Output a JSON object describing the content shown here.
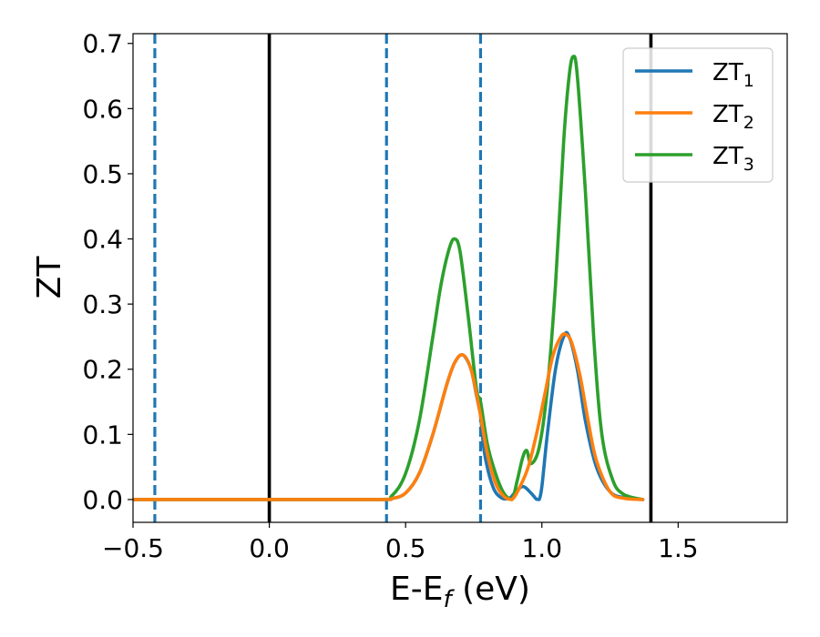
{
  "chart_data": {
    "type": "line",
    "title": "",
    "xlabel": "E-E",
    "xlabel_sub": "f",
    "xlabel_unit": " (eV)",
    "ylabel": "ZT",
    "xlim": [
      -0.5,
      1.9
    ],
    "ylim": [
      -0.035,
      0.715
    ],
    "xticks": [
      -0.5,
      0.0,
      0.5,
      1.0,
      1.5
    ],
    "xtick_labels": [
      "−0.5",
      "0.0",
      "0.5",
      "1.0",
      "1.5"
    ],
    "yticks": [
      0.0,
      0.1,
      0.2,
      0.3,
      0.4,
      0.5,
      0.6,
      0.7
    ],
    "ytick_labels": [
      "0.0",
      "0.1",
      "0.2",
      "0.3",
      "0.4",
      "0.5",
      "0.6",
      "0.7"
    ],
    "grid": false,
    "legend_position": "top-right",
    "vlines": [
      {
        "x": -0.42,
        "style": "dashed",
        "color": "#1f77b4"
      },
      {
        "x": 0.0,
        "style": "solid",
        "color": "#000000"
      },
      {
        "x": 0.43,
        "style": "dashed",
        "color": "#1f77b4"
      },
      {
        "x": 0.775,
        "style": "dashed",
        "color": "#1f77b4"
      },
      {
        "x": 1.4,
        "style": "solid",
        "color": "#000000"
      }
    ],
    "series": [
      {
        "name": "ZT",
        "name_sub": "1",
        "color": "#1f77b4",
        "x": [
          -0.5,
          0.0,
          0.4,
          0.45,
          0.5,
          0.55,
          0.6,
          0.65,
          0.68,
          0.71,
          0.74,
          0.76,
          0.77,
          0.775,
          0.79,
          0.82,
          0.85,
          0.88,
          0.9,
          0.93,
          0.96,
          0.98,
          0.99,
          1.0,
          1.02,
          1.05,
          1.08,
          1.1,
          1.13,
          1.16,
          1.2,
          1.25,
          1.3,
          1.37
        ],
        "y": [
          0.0,
          0.0,
          0.0,
          0.0015,
          0.01,
          0.04,
          0.1,
          0.175,
          0.21,
          0.222,
          0.2,
          0.16,
          0.14,
          0.13,
          0.07,
          0.02,
          0.003,
          0.002,
          0.01,
          0.02,
          0.01,
          0.0005,
          0.0,
          0.02,
          0.1,
          0.2,
          0.25,
          0.25,
          0.2,
          0.12,
          0.05,
          0.012,
          0.003,
          0.0
        ]
      },
      {
        "name": "ZT",
        "name_sub": "2",
        "color": "#ff7f0e",
        "x": [
          -0.5,
          0.0,
          0.4,
          0.45,
          0.5,
          0.55,
          0.6,
          0.65,
          0.68,
          0.71,
          0.74,
          0.77,
          0.8,
          0.83,
          0.86,
          0.89,
          0.92,
          0.95,
          0.98,
          1.01,
          1.04,
          1.07,
          1.09,
          1.11,
          1.14,
          1.17,
          1.2,
          1.25,
          1.3,
          1.37
        ],
        "y": [
          0.0,
          0.0,
          0.0,
          0.0015,
          0.01,
          0.04,
          0.1,
          0.175,
          0.21,
          0.222,
          0.2,
          0.14,
          0.07,
          0.025,
          0.005,
          0.0,
          0.02,
          0.05,
          0.1,
          0.16,
          0.22,
          0.25,
          0.253,
          0.24,
          0.19,
          0.12,
          0.06,
          0.012,
          0.002,
          0.0
        ]
      },
      {
        "name": "ZT",
        "name_sub": "3",
        "color": "#2ca02c",
        "x": [
          -0.5,
          0.0,
          0.4,
          0.45,
          0.5,
          0.55,
          0.6,
          0.63,
          0.66,
          0.68,
          0.7,
          0.73,
          0.76,
          0.775,
          0.8,
          0.83,
          0.86,
          0.89,
          0.91,
          0.93,
          0.945,
          0.96,
          0.99,
          1.02,
          1.05,
          1.08,
          1.1,
          1.115,
          1.13,
          1.16,
          1.19,
          1.22,
          1.26,
          1.3,
          1.37
        ],
        "y": [
          0.0,
          0.0,
          0.0,
          0.006,
          0.04,
          0.12,
          0.25,
          0.33,
          0.385,
          0.4,
          0.38,
          0.28,
          0.17,
          0.15,
          0.085,
          0.04,
          0.01,
          0.0,
          0.03,
          0.065,
          0.075,
          0.055,
          0.08,
          0.17,
          0.33,
          0.55,
          0.65,
          0.68,
          0.65,
          0.47,
          0.25,
          0.1,
          0.03,
          0.008,
          0.0
        ]
      }
    ]
  }
}
